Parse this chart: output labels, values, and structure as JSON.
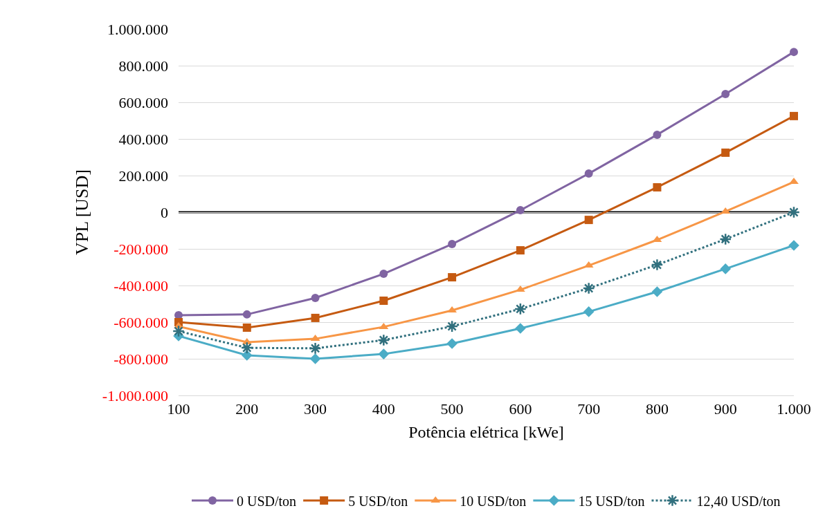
{
  "chart_data": {
    "type": "line",
    "xlabel": "Potência elétrica [kWe]",
    "ylabel": "VPL [USD]",
    "x": [
      100,
      200,
      300,
      400,
      500,
      600,
      700,
      800,
      900,
      1000
    ],
    "xlim": [
      100,
      1000
    ],
    "xticks": [
      100,
      200,
      300,
      400,
      500,
      600,
      700,
      800,
      900,
      {
        "value": 1000,
        "label": "1.000"
      }
    ],
    "ylim": [
      -1000000,
      1000000
    ],
    "yticks": [
      {
        "value": -1000000,
        "label": "-1.000.000"
      },
      {
        "value": -800000,
        "label": "-800.000"
      },
      {
        "value": -600000,
        "label": "-600.000"
      },
      {
        "value": -400000,
        "label": "-400.000"
      },
      {
        "value": -200000,
        "label": "-200.000"
      },
      0,
      {
        "value": 200000,
        "label": "200.000"
      },
      {
        "value": 400000,
        "label": "400.000"
      },
      {
        "value": 600000,
        "label": "600.000"
      },
      {
        "value": 800000,
        "label": "800.000"
      },
      {
        "value": 1000000,
        "label": "1.000.000"
      }
    ],
    "grid": "y",
    "legend": "bottom",
    "ref_lines": [
      {
        "axis": "y",
        "value": 0,
        "color": "#000000"
      }
    ],
    "series": [
      {
        "name": "0 USD/ton",
        "color": "#8064a2",
        "marker": "circle",
        "line_style": "solid",
        "values": [
          -562000,
          -558000,
          -468000,
          -336000,
          -174000,
          11000,
          211000,
          423000,
          645000,
          875000
        ]
      },
      {
        "name": "5 USD/ton",
        "color": "#c55a11",
        "marker": "square",
        "line_style": "solid",
        "values": [
          -600000,
          -630000,
          -577000,
          -483000,
          -355000,
          -208000,
          -42000,
          136000,
          325000,
          525000
        ]
      },
      {
        "name": "10 USD/ton",
        "color": "#f79646",
        "marker": "triangle",
        "line_style": "solid",
        "values": [
          -623000,
          -709000,
          -691000,
          -626000,
          -536000,
          -423000,
          -291000,
          -151000,
          4000,
          166000
        ]
      },
      {
        "name": "15 USD/ton",
        "color": "#4bacc6",
        "marker": "diamond",
        "line_style": "solid",
        "values": [
          -675000,
          -781000,
          -800000,
          -774000,
          -717000,
          -634000,
          -543000,
          -434000,
          -309000,
          -181000
        ]
      },
      {
        "name": "12,40 USD/ton",
        "color": "#31707e",
        "marker": "cross",
        "line_style": "dotted",
        "values": [
          -649000,
          -740000,
          -743000,
          -698000,
          -623000,
          -528000,
          -415000,
          -287000,
          -147000,
          0
        ]
      }
    ]
  }
}
